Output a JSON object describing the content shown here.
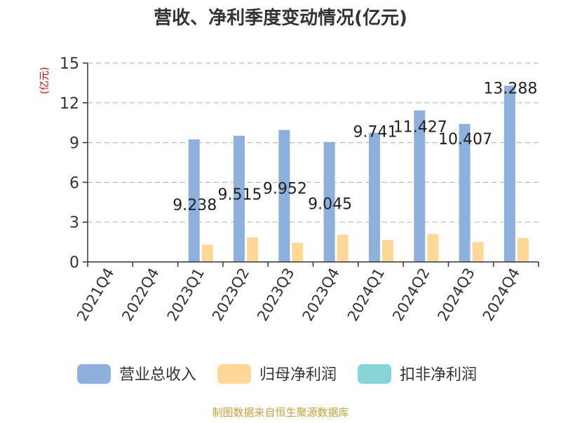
{
  "chart_data": {
    "type": "bar",
    "title": "营收、净利季度变动情况(亿元)",
    "ylabel": "(亿元)",
    "ylim": [
      0,
      15
    ],
    "yticks": [
      0,
      3,
      6,
      9,
      12,
      15
    ],
    "grid": true,
    "categories": [
      "2021Q4",
      "2022Q4",
      "2023Q1",
      "2023Q2",
      "2023Q3",
      "2023Q4",
      "2024Q1",
      "2024Q2",
      "2024Q3",
      "2024Q4"
    ],
    "series": [
      {
        "name": "营业总收入",
        "color": "#8eb0dc",
        "values": [
          null,
          null,
          9.238,
          9.515,
          9.952,
          9.045,
          9.741,
          11.427,
          10.407,
          13.288
        ],
        "labels": [
          "",
          "",
          "9.238",
          "9.515",
          "9.952",
          "9.045",
          "9.741",
          "11.427",
          "10.407",
          "13.288"
        ]
      },
      {
        "name": "归母净利润",
        "color": "#ffd898",
        "values": [
          null,
          null,
          1.3,
          1.85,
          1.45,
          2.05,
          1.65,
          2.1,
          1.5,
          1.8
        ]
      },
      {
        "name": "扣非净利润",
        "color": "#88d5d8",
        "values": [
          null,
          null,
          null,
          null,
          null,
          null,
          null,
          null,
          null,
          null
        ]
      }
    ],
    "legend_position": "bottom"
  },
  "source": "制图数据来自恒生聚源数据库",
  "colors": {
    "title": "#333333",
    "ylabel": "#e00000",
    "source": "#c8a040",
    "axis": "#333333",
    "grid": "#bbbbbb"
  }
}
